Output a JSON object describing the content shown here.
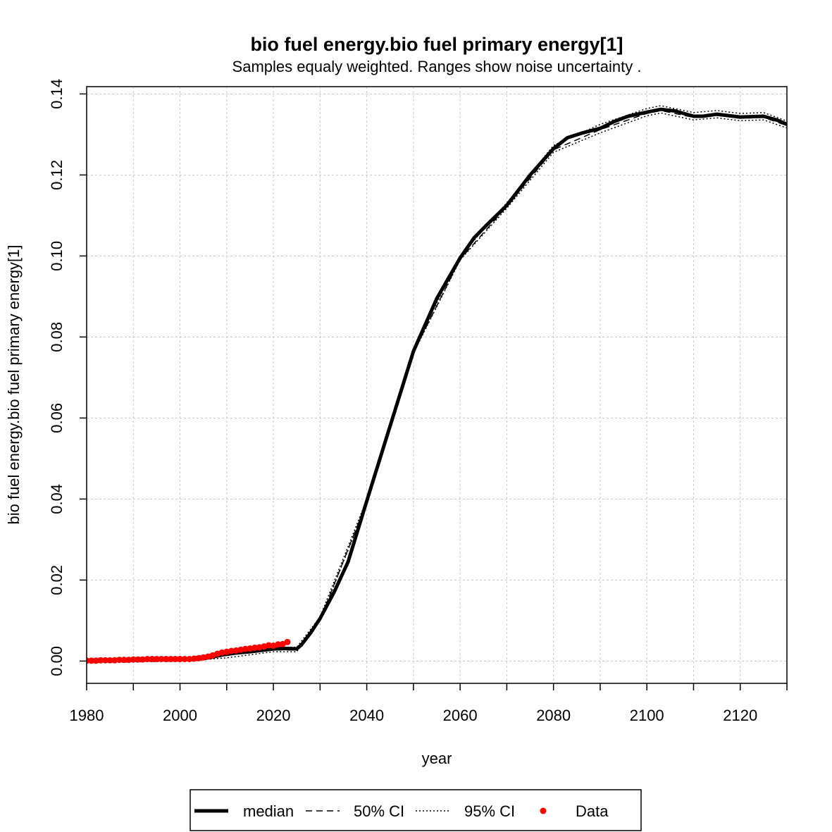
{
  "chart_data": {
    "type": "line",
    "title": "bio fuel energy.bio fuel primary energy[1]",
    "subtitle": "Samples equaly weighted. Ranges show  noise uncertainty .",
    "xlabel": "year",
    "ylabel": "bio fuel energy.bio fuel primary energy[1]",
    "xlim": [
      1980,
      2130
    ],
    "ylim": [
      -0.0055,
      0.1418
    ],
    "x_ticks": [
      1980,
      2000,
      2020,
      2040,
      2060,
      2080,
      2100,
      2120
    ],
    "x_minor_ticks": [
      1990,
      2010,
      2030,
      2050,
      2070,
      2090,
      2110,
      2130
    ],
    "y_ticks": [
      0.0,
      0.02,
      0.04,
      0.06,
      0.08,
      0.1,
      0.12,
      0.14
    ],
    "y_tick_labels": [
      "0.00",
      "0.02",
      "0.04",
      "0.06",
      "0.08",
      "0.10",
      "0.12",
      "0.14"
    ],
    "grid": true,
    "legend_position": "bottom",
    "series": [
      {
        "name": "median",
        "style": "thick-solid",
        "color": "#000000",
        "x": [
          1980,
          1985,
          1990,
          1995,
          2000,
          2003,
          2005,
          2007,
          2009,
          2012,
          2015,
          2018,
          2020,
          2023,
          2025,
          2026,
          2028,
          2030,
          2033,
          2036,
          2040,
          2045,
          2050,
          2055,
          2060,
          2063,
          2066,
          2070,
          2075,
          2080,
          2083,
          2086,
          2090,
          2093,
          2096,
          2100,
          2103,
          2106,
          2110,
          2112,
          2115,
          2120,
          2125,
          2128,
          2130
        ],
        "y": [
          0.0,
          0.0001,
          0.0002,
          0.0003,
          0.0003,
          0.0004,
          0.0006,
          0.001,
          0.0015,
          0.002,
          0.0023,
          0.0027,
          0.003,
          0.0031,
          0.003,
          0.004,
          0.007,
          0.0105,
          0.017,
          0.0245,
          0.0395,
          0.058,
          0.0765,
          0.0895,
          0.0995,
          0.1045,
          0.108,
          0.1125,
          0.12,
          0.1265,
          0.1292,
          0.1303,
          0.1315,
          0.1332,
          0.1345,
          0.1355,
          0.1362,
          0.1358,
          0.1345,
          0.1345,
          0.135,
          0.1343,
          0.1345,
          0.1335,
          0.1325
        ]
      },
      {
        "name": "50% CI",
        "style": "dashed",
        "color": "#000000",
        "x": [
          1980,
          2000,
          2010,
          2020,
          2025,
          2030,
          2040,
          2050,
          2060,
          2070,
          2080,
          2090,
          2100,
          2103,
          2110,
          2115,
          2120,
          2125,
          2130
        ],
        "y": [
          -0.0001,
          0.0002,
          0.0017,
          0.0028,
          0.0027,
          0.0102,
          0.0392,
          0.0762,
          0.0992,
          0.1122,
          0.1262,
          0.1312,
          0.1352,
          0.1359,
          0.1342,
          0.1347,
          0.134,
          0.1342,
          0.1322
        ]
      },
      {
        "name": "95% CI",
        "style": "dotted",
        "color": "#000000",
        "upper": {
          "x": [
            1980,
            2000,
            2010,
            2020,
            2025,
            2030,
            2040,
            2050,
            2060,
            2070,
            2080,
            2090,
            2100,
            2103,
            2110,
            2115,
            2120,
            2125,
            2130
          ],
          "y": [
            0.0004,
            0.0006,
            0.0022,
            0.0034,
            0.0034,
            0.0109,
            0.0399,
            0.0769,
            0.0999,
            0.1131,
            0.1273,
            0.1325,
            0.1364,
            0.1371,
            0.1354,
            0.1359,
            0.1352,
            0.1354,
            0.1333
          ]
        },
        "lower": {
          "x": [
            1980,
            2000,
            2010,
            2020,
            2025,
            2030,
            2040,
            2050,
            2060,
            2070,
            2080,
            2090,
            2100,
            2103,
            2110,
            2115,
            2120,
            2125,
            2130
          ],
          "y": [
            -0.0004,
            0.0,
            0.0008,
            0.0023,
            0.0023,
            0.01,
            0.039,
            0.076,
            0.099,
            0.1118,
            0.1256,
            0.1304,
            0.1346,
            0.1353,
            0.1336,
            0.1341,
            0.1334,
            0.1336,
            0.1316
          ]
        }
      },
      {
        "name": "Data",
        "style": "points",
        "color": "#ff0000",
        "x": [
          1980,
          1981,
          1982,
          1983,
          1984,
          1985,
          1986,
          1987,
          1988,
          1989,
          1990,
          1991,
          1992,
          1993,
          1994,
          1995,
          1996,
          1997,
          1998,
          1999,
          2000,
          2001,
          2002,
          2003,
          2004,
          2005,
          2006,
          2007,
          2008,
          2009,
          2010,
          2011,
          2012,
          2013,
          2014,
          2015,
          2016,
          2017,
          2018,
          2019,
          2020,
          2021,
          2022,
          2023
        ],
        "y": [
          0.0001,
          0.0001,
          0.0001,
          0.0002,
          0.0002,
          0.0002,
          0.0002,
          0.0003,
          0.0003,
          0.0003,
          0.0004,
          0.0004,
          0.0004,
          0.0005,
          0.0005,
          0.0005,
          0.0005,
          0.0005,
          0.0005,
          0.0005,
          0.0005,
          0.0005,
          0.0005,
          0.0006,
          0.0007,
          0.0009,
          0.0011,
          0.0014,
          0.0018,
          0.0021,
          0.0023,
          0.0025,
          0.0026,
          0.0028,
          0.003,
          0.0031,
          0.0033,
          0.0034,
          0.0036,
          0.0039,
          0.0038,
          0.0041,
          0.0042,
          0.0047
        ]
      }
    ],
    "legend": [
      {
        "label": "median",
        "style": "thick-solid"
      },
      {
        "label": "50% CI",
        "style": "dashed"
      },
      {
        "label": "95% CI",
        "style": "dotted"
      },
      {
        "label": "Data",
        "style": "point"
      }
    ]
  }
}
